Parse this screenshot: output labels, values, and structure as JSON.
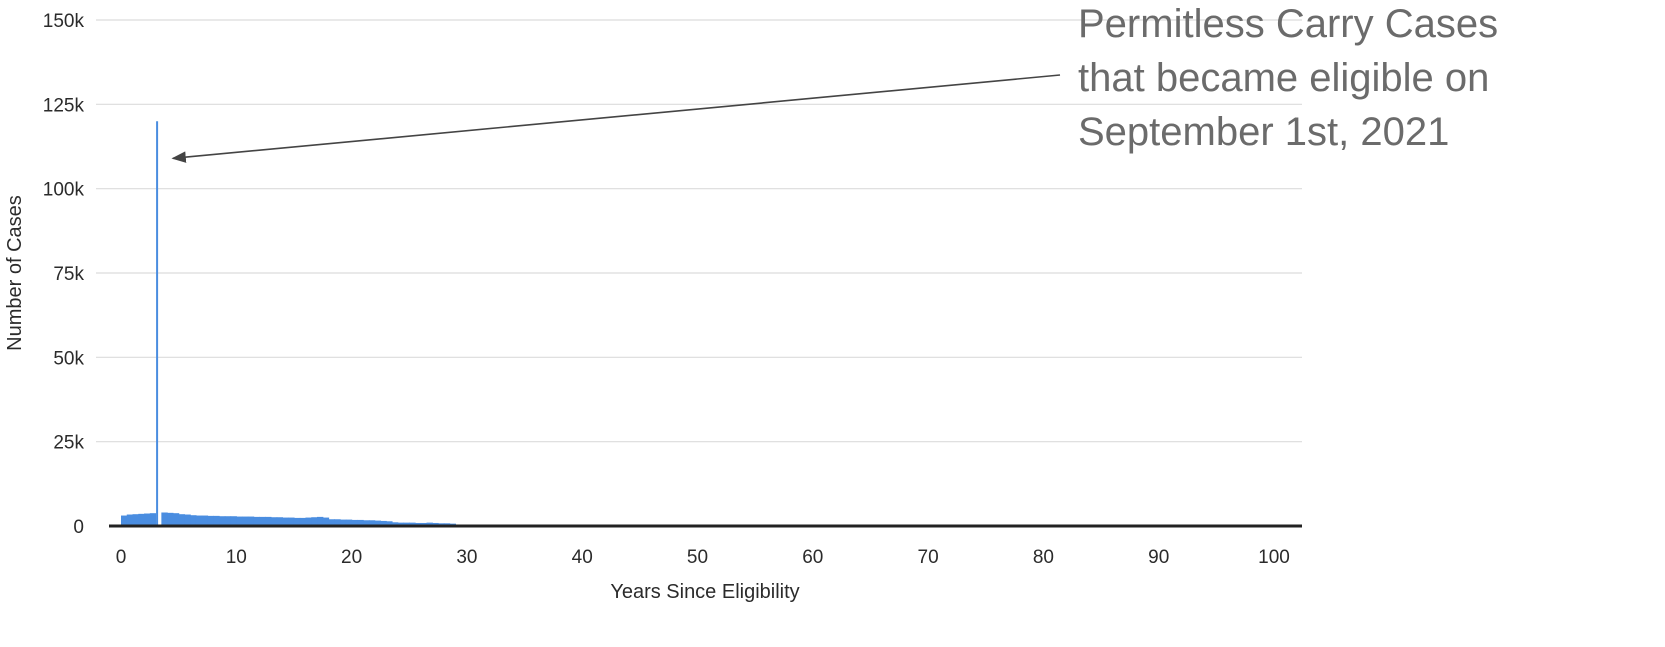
{
  "chart_data": {
    "type": "bar",
    "title": "",
    "xlabel": "Years Since Eligibility",
    "ylabel": "Number of Cases",
    "xlim": [
      -1,
      102.5
    ],
    "ylim": [
      0,
      150000
    ],
    "x_ticks": [
      0,
      10,
      20,
      30,
      40,
      50,
      60,
      70,
      80,
      90,
      100
    ],
    "y_ticks": [
      0,
      25000,
      50000,
      75000,
      100000,
      125000,
      150000
    ],
    "y_tick_labels": [
      "0",
      "25k",
      "50k",
      "75k",
      "100k",
      "125k",
      "150k"
    ],
    "grid": true,
    "legend": "none",
    "bar_color": "#4a8de0",
    "spike": {
      "x": 3.0,
      "value": 120000
    },
    "series": [
      {
        "bin_width_years": 0.5,
        "x": [
          0.0,
          0.5,
          1.0,
          1.5,
          2.0,
          2.5,
          3.5,
          4.0,
          4.5,
          5.0,
          5.5,
          6.0,
          6.5,
          7.0,
          7.5,
          8.0,
          8.5,
          9.0,
          9.5,
          10.0,
          10.5,
          11.0,
          11.5,
          12.0,
          12.5,
          13.0,
          13.5,
          14.0,
          14.5,
          15.0,
          15.5,
          16.0,
          16.5,
          17.0,
          17.5,
          18.0,
          18.5,
          19.0,
          19.5,
          20.0,
          20.5,
          21.0,
          21.5,
          22.0,
          22.5,
          23.0,
          23.5,
          24.0,
          24.5,
          25.0,
          25.5,
          26.0,
          26.5,
          27.0,
          27.5,
          28.0,
          28.5
        ],
        "values": [
          3100,
          3400,
          3500,
          3600,
          3700,
          3800,
          4000,
          3900,
          3800,
          3500,
          3400,
          3200,
          3100,
          3100,
          3000,
          3000,
          2900,
          2900,
          2900,
          2800,
          2800,
          2800,
          2700,
          2700,
          2700,
          2600,
          2600,
          2500,
          2500,
          2400,
          2400,
          2500,
          2600,
          2700,
          2500,
          2000,
          2000,
          1900,
          1900,
          1800,
          1800,
          1700,
          1700,
          1600,
          1500,
          1400,
          1100,
          1000,
          1000,
          1000,
          900,
          900,
          1000,
          900,
          800,
          800,
          700
        ]
      }
    ],
    "annotation": {
      "lines": [
        "Permitless Carry Cases",
        "that became eligible on",
        "September 1st, 2021"
      ],
      "arrow_target": {
        "x": 4.5,
        "y": 109000
      },
      "text_color": "#6b6b6b",
      "arrow_color": "#444444"
    }
  }
}
